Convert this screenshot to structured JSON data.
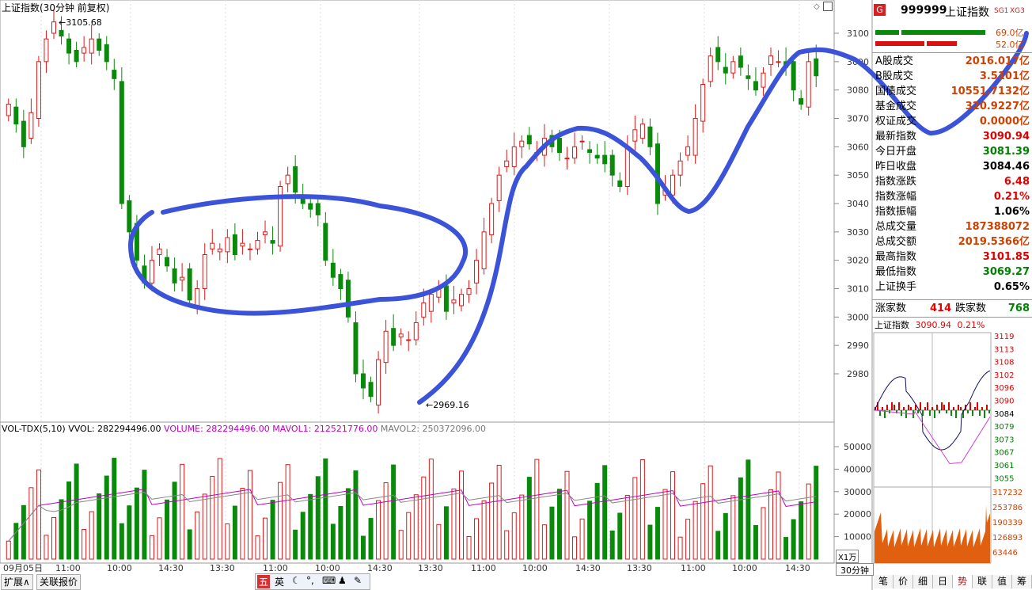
{
  "chart_title": "上证指数(30分钟 前复权)",
  "main_chart": {
    "high_label": "3105.68",
    "low_label": "2969.16",
    "y_ticks": [
      "3100",
      "3090",
      "3080",
      "3070",
      "3060",
      "3050",
      "3040",
      "3030",
      "3020",
      "3010",
      "3000",
      "2990",
      "2980"
    ],
    "x_labels": [
      "09月05日",
      "11:00",
      "10:00",
      "14:30",
      "13:30",
      "11:00",
      "10:00",
      "14:30",
      "13:30",
      "11:00",
      "10:00",
      "14:30",
      "13:30",
      "11:00",
      "10:00",
      "14:30"
    ],
    "period_label": "30分钟"
  },
  "volume_panel": {
    "indicator": "VOL-TDX(5,10)",
    "vvol": "VVOL: 282294496.00",
    "volume": "VOLUME: 282294496.00",
    "mavol1": "MAVOL1: 212521776.00",
    "mavol2": "MAVOL2: 250372096.00",
    "y_ticks": [
      "50000",
      "40000",
      "30000",
      "20000",
      "10000"
    ],
    "unit": "X1万"
  },
  "side_panel": {
    "code": "999999",
    "name": "上证指数",
    "badges": [
      "SG1",
      "XG3"
    ],
    "g_badge": "G",
    "bar_up_value": "69.0亿",
    "bar_down_value": "52.0亿",
    "rows": [
      {
        "label": "A股成交",
        "value": "2016.017亿",
        "color": "#d04000"
      },
      {
        "label": "B股成交",
        "value": "3.5101亿",
        "color": "#d04000"
      },
      {
        "label": "国债成交",
        "value": "10551.7132亿",
        "color": "#d04000"
      },
      {
        "label": "基金成交",
        "value": "320.9227亿",
        "color": "#d04000"
      },
      {
        "label": "权证成交",
        "value": "0.0000亿",
        "color": "#d04000"
      },
      {
        "label": "最新指数",
        "value": "3090.94",
        "color": "#e00000"
      },
      {
        "label": "今日开盘",
        "value": "3081.39",
        "color": "#008000"
      },
      {
        "label": "昨日收盘",
        "value": "3084.46",
        "color": "#000000"
      },
      {
        "label": "指数涨跌",
        "value": "6.48",
        "color": "#e00000"
      },
      {
        "label": "指数涨幅",
        "value": "0.21%",
        "color": "#e00000"
      },
      {
        "label": "指数振幅",
        "value": "1.06%",
        "color": "#000000"
      },
      {
        "label": "总成交量",
        "value": "187388072",
        "color": "#d04000"
      },
      {
        "label": "总成交额",
        "value": "2019.5366亿",
        "color": "#d04000"
      },
      {
        "label": "最高指数",
        "value": "3101.85",
        "color": "#e00000"
      },
      {
        "label": "最低指数",
        "value": "3069.27",
        "color": "#008000"
      },
      {
        "label": "上证换手",
        "value": "0.65%",
        "color": "#000000"
      }
    ],
    "rise_label": "涨家数",
    "rise_value": "414",
    "fall_label": "跌家数",
    "fall_value": "768",
    "mini_title": "上证指数",
    "mini_price": "3090.94",
    "mini_pct": "0.21%",
    "mini_price_ticks": [
      "3119",
      "3113",
      "3108",
      "3102",
      "3096",
      "3090",
      "3084",
      "3079",
      "3073",
      "3067",
      "3061",
      "3055"
    ],
    "mini_vol_ticks": [
      "317232",
      "253786",
      "190339",
      "126893",
      "63446"
    ],
    "tabs": [
      "笔",
      "价",
      "细",
      "日",
      "势",
      "联",
      "值",
      "筹"
    ],
    "active_tab": "势"
  },
  "bottom_bar": {
    "expand_label": "扩展∧",
    "related_label": "关联报价",
    "ime_items": [
      "五",
      "英"
    ]
  }
}
